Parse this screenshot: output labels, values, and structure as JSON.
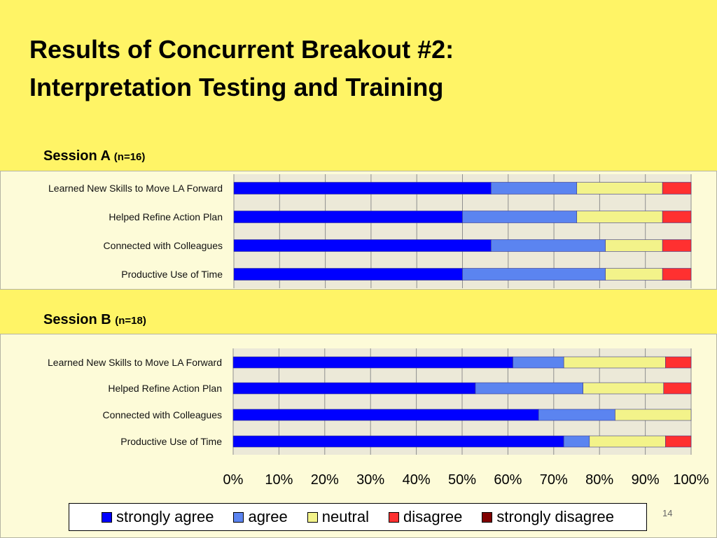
{
  "title": {
    "line1": "Results of Concurrent Breakout #2:",
    "line2": "Interpretation Testing and Training"
  },
  "slide_number": "14",
  "colors": {
    "background": "#fff466",
    "plot_area": "#ece9d8",
    "gridline": "#8f8f8f"
  },
  "chart_data": [
    {
      "type": "bar",
      "orientation": "horizontal",
      "stacked": true,
      "title": "Session A",
      "n_label": "(n=16)",
      "categories": [
        "Learned New Skills to Move LA Forward",
        "Helped Refine Action Plan",
        "Connected with Colleagues",
        "Productive Use of Time"
      ],
      "series": [
        {
          "name": "strongly agree",
          "color": "#0000ff",
          "values": [
            56.25,
            50.0,
            56.25,
            50.0
          ]
        },
        {
          "name": "agree",
          "color": "#5b84f0",
          "values": [
            18.75,
            25.0,
            25.0,
            31.25
          ]
        },
        {
          "name": "neutral",
          "color": "#f3f38a",
          "values": [
            18.75,
            18.75,
            12.5,
            12.5
          ]
        },
        {
          "name": "disagree",
          "color": "#ff3030",
          "values": [
            6.25,
            6.25,
            6.25,
            6.25
          ]
        },
        {
          "name": "strongly disagree",
          "color": "#800000",
          "values": [
            0,
            0,
            0,
            0
          ]
        }
      ],
      "xlim": [
        0,
        100
      ],
      "grid": true
    },
    {
      "type": "bar",
      "orientation": "horizontal",
      "stacked": true,
      "title": "Session B",
      "n_label": "(n=18)",
      "categories": [
        "Learned New Skills to Move LA Forward",
        "Helped Refine Action Plan",
        "Connected with Colleagues",
        "Productive Use of Time"
      ],
      "series": [
        {
          "name": "strongly agree",
          "color": "#0000ff",
          "values": [
            61.1,
            52.9,
            66.7,
            72.2
          ]
        },
        {
          "name": "agree",
          "color": "#5b84f0",
          "values": [
            11.1,
            23.5,
            16.7,
            5.6
          ]
        },
        {
          "name": "neutral",
          "color": "#f3f38a",
          "values": [
            22.2,
            17.6,
            16.6,
            16.6
          ]
        },
        {
          "name": "disagree",
          "color": "#ff3030",
          "values": [
            5.6,
            6.0,
            0,
            5.6
          ]
        },
        {
          "name": "strongly disagree",
          "color": "#800000",
          "values": [
            0,
            0,
            0,
            0
          ]
        }
      ],
      "xlim": [
        0,
        100
      ],
      "xticks": [
        "0%",
        "10%",
        "20%",
        "30%",
        "40%",
        "50%",
        "60%",
        "70%",
        "80%",
        "90%",
        "100%"
      ],
      "grid": true
    }
  ],
  "legend": {
    "items": [
      {
        "label": "strongly agree",
        "color": "#0000ff"
      },
      {
        "label": "agree",
        "color": "#5b84f0"
      },
      {
        "label": "neutral",
        "color": "#f3f38a"
      },
      {
        "label": "disagree",
        "color": "#ff3030"
      },
      {
        "label": "strongly disagree",
        "color": "#800000"
      }
    ],
    "position": "bottom"
  }
}
